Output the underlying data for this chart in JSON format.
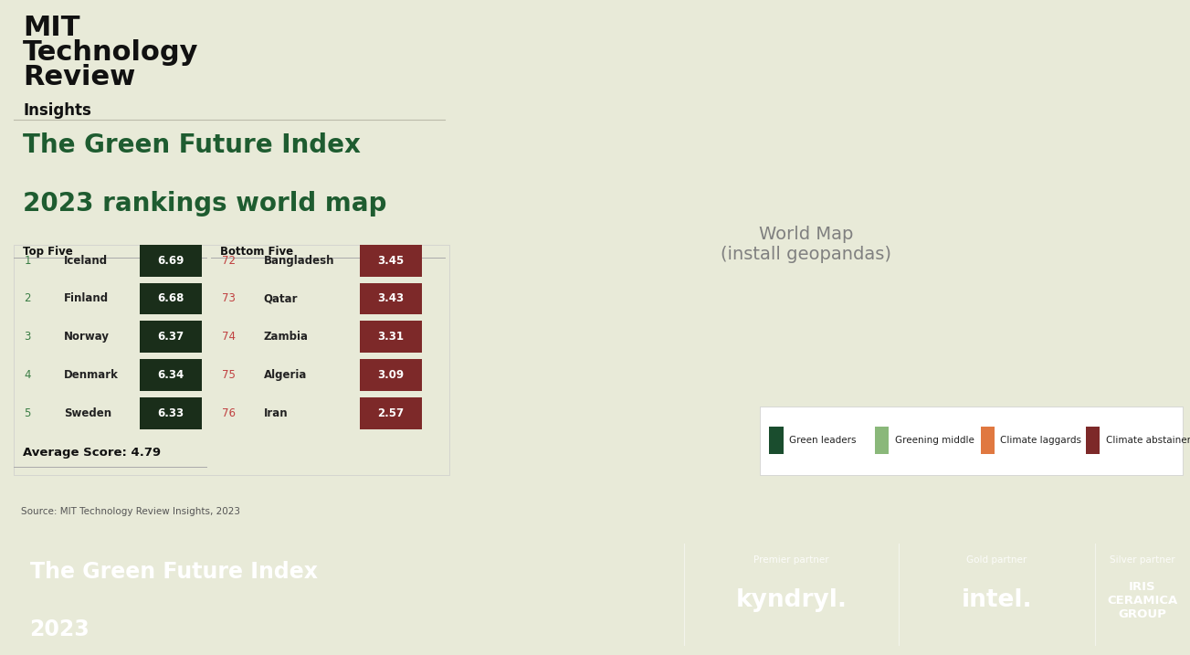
{
  "bg_color": "#e8ead8",
  "map_bg": "#dde8e0",
  "footer_bg": "#2d6147",
  "header_text": "MIT\nTechnology\nReview",
  "insights_text": "Insights",
  "title_line1": "The Green Future Index",
  "title_line2": "2023 rankings world map",
  "top_five_label": "Top Five",
  "bottom_five_label": "Bottom Five",
  "top_five": [
    {
      "rank": 1,
      "country": "Iceland",
      "score": 6.69
    },
    {
      "rank": 2,
      "country": "Finland",
      "score": 6.68
    },
    {
      "rank": 3,
      "country": "Norway",
      "score": 6.37
    },
    {
      "rank": 4,
      "country": "Denmark",
      "score": 6.34
    },
    {
      "rank": 5,
      "country": "Sweden",
      "score": 6.33
    }
  ],
  "bottom_five": [
    {
      "rank": 72,
      "country": "Bangladesh",
      "score": 3.45
    },
    {
      "rank": 73,
      "country": "Qatar",
      "score": 3.43
    },
    {
      "rank": 74,
      "country": "Zambia",
      "score": 3.31
    },
    {
      "rank": 75,
      "country": "Algeria",
      "score": 3.09
    },
    {
      "rank": 76,
      "country": "Iran",
      "score": 2.57
    }
  ],
  "avg_score_label": "Average Score: 4.79",
  "source_text": "Source: MIT Technology Review Insights, 2023",
  "legend_items": [
    {
      "label": "Green leaders",
      "color": "#1a4d2e"
    },
    {
      "label": "Greening middle",
      "color": "#8ab87a"
    },
    {
      "label": "Climate laggards",
      "color": "#e07840"
    },
    {
      "label": "Climate abstainers",
      "color": "#7d2929"
    }
  ],
  "footer_title_line1": "The Green Future Index",
  "footer_title_line2": "2023",
  "premier_partner_label": "Premier partner",
  "premier_partner_name": "kyndryl.",
  "gold_partner_label": "Gold partner",
  "gold_partner_name": "intel.",
  "silver_partner_label": "Silver partner",
  "silver_partner_name": "IRIS\nCERAMICA\nGROUP",
  "top_score_color": "#1a2e1a",
  "bottom_score_color": "#7d2929",
  "top_rank_color": "#3a7d44",
  "bottom_rank_color": "#c04040",
  "color_map": {
    "Iceland": "#1c3a28",
    "Finland": "#1c3a28",
    "Norway": "#1c3a28",
    "Denmark": "#1c3a28",
    "Sweden": "#1c3a28",
    "Germany": "#1c3a28",
    "United Kingdom": "#1c3a28",
    "France": "#1c3a28",
    "Ireland": "#1c3a28",
    "Netherlands": "#1c3a28",
    "Switzerland": "#1c3a28",
    "Austria": "#1c3a28",
    "Belgium": "#1c3a28",
    "Portugal": "#1c3a28",
    "Luxembourg": "#1c3a28",
    "Spain": "#2e7d4f",
    "United States of America": "#2e7d4f",
    "Canada": "#2e7d4f",
    "New Zealand": "#2e7d4f",
    "Brazil": "#8ab87a",
    "Japan": "#8ab87a",
    "South Korea": "#8ab87a",
    "China": "#8ab87a",
    "South Africa": "#8ab87a",
    "Colombia": "#8ab87a",
    "Chile": "#8ab87a",
    "Italy": "#8ab87a",
    "Morocco": "#8ab87a",
    "Kenya": "#8ab87a",
    "Ethiopia": "#8ab87a",
    "Bolivia": "#8ab87a",
    "Uruguay": "#8ab87a",
    "Tanzania": "#8ab87a",
    "Vietnam": "#8ab87a",
    "Russia": "#c0522a",
    "India": "#e07840",
    "Saudi Arabia": "#e07840",
    "Indonesia": "#e07840",
    "Turkey": "#e07840",
    "Mexico": "#e8b090",
    "Australia": "#e8b090",
    "Egypt": "#e07840",
    "Nigeria": "#e07840",
    "Ghana": "#e07840",
    "Thailand": "#e07840",
    "Malaysia": "#e07840",
    "Ukraine": "#e07840",
    "Pakistan": "#e07840",
    "Philippines": "#c0522a",
    "United Arab Emirates": "#e07840",
    "Kuwait": "#e07840",
    "Iraq": "#e07840",
    "Oman": "#e07840",
    "Kazakhstan": "#c0522a",
    "Uzbekistan": "#c0522a",
    "Mongolia": "#c0522a",
    "Belarus": "#c0522a",
    "Venezuela": "#e8b090",
    "Peru": "#e8b090",
    "Ecuador": "#c0522a",
    "Iran": "#7d2929",
    "Algeria": "#7d2929",
    "Qatar": "#7d2929",
    "Bangladesh": "#7d2929",
    "Zambia": "#7d2929",
    "Libya": "#8b3333",
    "Sudan": "#8b3333",
    "Myanmar": "#8b3333",
    "Angola": "#8b3333",
    "Mozambique": "#8b3333",
    "Zimbabwe": "#7d2929",
    "Dem. Rep. Congo": "#8b3333",
    "Cuba": "#8b3333"
  },
  "default_color": "#c8d8cc"
}
